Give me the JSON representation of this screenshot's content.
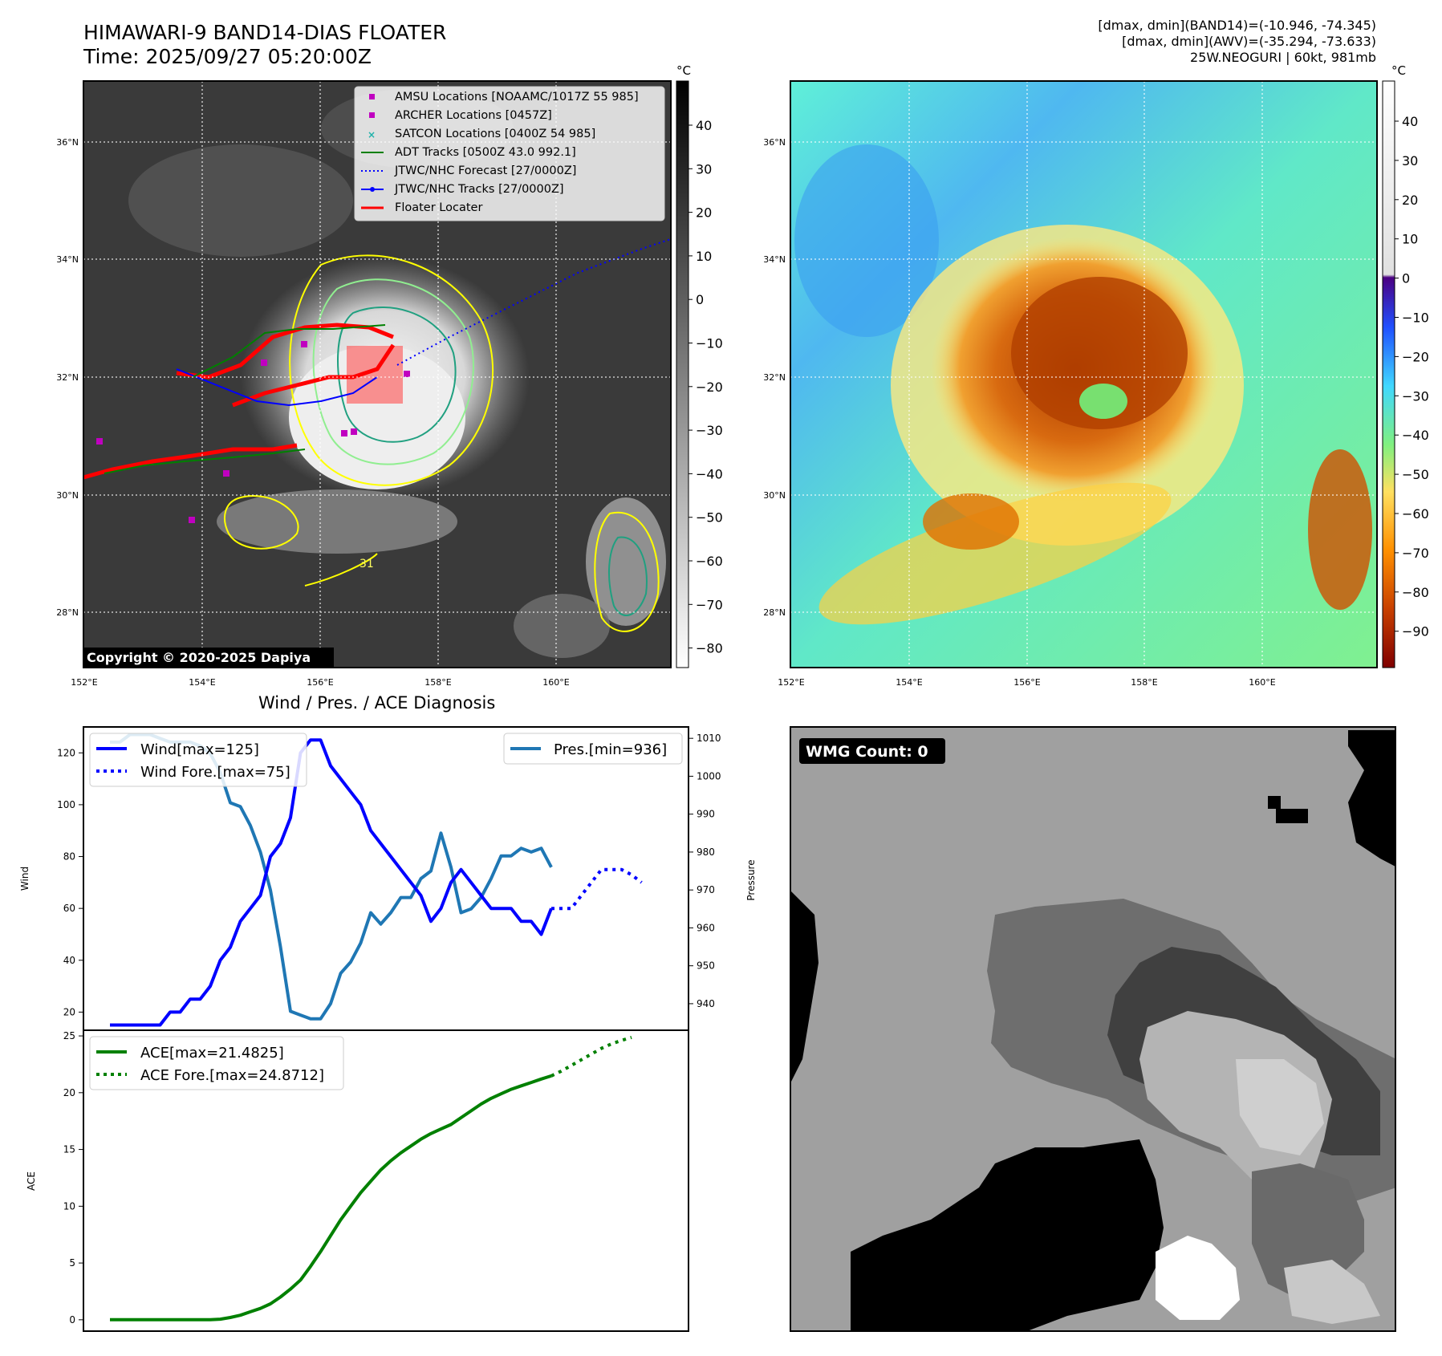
{
  "header": {
    "title_line1": "HIMAWARI-9 BAND14-DIAS FLOATER",
    "title_line2": "Time: 2025/09/27 05:20:00Z",
    "info_line1": "[dmax, dmin](BAND14)=(-10.946, -74.345)",
    "info_line2": "[dmax, dmin](AWV)=(-35.294, -73.633)",
    "info_line3": "25W.NEOGURI | 60kt, 981mb"
  },
  "map_common": {
    "lat_ticks": [
      "36°N",
      "34°N",
      "32°N",
      "30°N",
      "28°N"
    ],
    "lon_ticks": [
      "152°E",
      "154°E",
      "156°E",
      "158°E",
      "160°E"
    ],
    "colorbar_unit": "°C"
  },
  "ir_panel": {
    "colorbar_ticks": [
      "40",
      "30",
      "20",
      "10",
      "0",
      "−10",
      "−20",
      "−30",
      "−40",
      "−50",
      "−60",
      "−70",
      "−80"
    ],
    "copyright": "Copyright © 2020-2025 Dapiya",
    "contour_label": "31",
    "legend": [
      {
        "label": "AMSU Locations [NOAAMC/1017Z 55 985]",
        "color": "#c000c0",
        "marker": "square"
      },
      {
        "label": "ARCHER Locations [0457Z]",
        "color": "#c000c0",
        "marker": "square"
      },
      {
        "label": "SATCON Locations [0400Z 54 985]",
        "color": "#20b2aa",
        "marker": "x"
      },
      {
        "label": "ADT Tracks [0500Z 43.0 992.1]",
        "color": "#008000",
        "marker": "line"
      },
      {
        "label": "JTWC/NHC Forecast [27/0000Z]",
        "color": "#0000ff",
        "marker": "dotted"
      },
      {
        "label": "JTWC/NHC Tracks [27/0000Z]",
        "color": "#0000ff",
        "marker": "line-dot"
      },
      {
        "label": "Floater Locater",
        "color": "#ff0000",
        "marker": "line"
      }
    ]
  },
  "wv_panel": {
    "colorbar_ticks": [
      "40",
      "30",
      "20",
      "10",
      "0",
      "−10",
      "−20",
      "−30",
      "−40",
      "−50",
      "−60",
      "−70",
      "−80",
      "−90"
    ]
  },
  "wmg_panel": {
    "badge": "WMG Count: 0"
  },
  "chart_data": [
    {
      "type": "line",
      "title": "Wind / Pres. / ACE Diagnosis",
      "ylabel": "Wind",
      "ylabel_right": "Pressure",
      "ylim": [
        13,
        130
      ],
      "ylim_right": [
        933,
        1013
      ],
      "yticks": [
        20,
        40,
        60,
        80,
        100,
        120
      ],
      "yticks_right": [
        940,
        950,
        960,
        970,
        980,
        990,
        1000,
        1010
      ],
      "series": [
        {
          "name": "Wind[max=125]",
          "color": "#0000ff",
          "style": "solid",
          "values": [
            15,
            15,
            15,
            15,
            15,
            15,
            20,
            20,
            25,
            25,
            30,
            40,
            45,
            55,
            60,
            65,
            80,
            85,
            95,
            120,
            125,
            125,
            115,
            110,
            105,
            100,
            90,
            85,
            80,
            75,
            70,
            65,
            55,
            60,
            70,
            75,
            70,
            65,
            60,
            60,
            60,
            55,
            55,
            50,
            60
          ]
        },
        {
          "name": "Wind Fore.[max=75]",
          "color": "#0000ff",
          "style": "dotted",
          "x_start": 44,
          "values": [
            60,
            60,
            60,
            65,
            70,
            75,
            75,
            75,
            73,
            70
          ]
        },
        {
          "name": "Pres.[min=936]",
          "color": "#1f77b4",
          "style": "solid",
          "axis": "right",
          "values": [
            1009,
            1009,
            1011,
            1011,
            1011,
            1010,
            1009,
            1009,
            1009,
            1008,
            1006,
            1001,
            993,
            992,
            987,
            980,
            970,
            955,
            938,
            937,
            936,
            936,
            940,
            948,
            951,
            956,
            964,
            961,
            964,
            968,
            968,
            973,
            975,
            985,
            976,
            964,
            965,
            968,
            973,
            979,
            979,
            981,
            980,
            981,
            976
          ]
        }
      ]
    },
    {
      "type": "line",
      "ylabel": "ACE",
      "ylim": [
        -1,
        25.5
      ],
      "yticks": [
        0,
        5,
        10,
        15,
        20,
        25
      ],
      "series": [
        {
          "name": "ACE[max=21.4825]",
          "color": "#008000",
          "style": "solid",
          "values": [
            0,
            0,
            0,
            0,
            0,
            0,
            0,
            0,
            0,
            0,
            0,
            0.05,
            0.2,
            0.4,
            0.7,
            1.0,
            1.4,
            2.0,
            2.7,
            3.5,
            4.7,
            6.0,
            7.4,
            8.8,
            10.0,
            11.2,
            12.2,
            13.2,
            14.0,
            14.7,
            15.3,
            15.9,
            16.4,
            16.8,
            17.2,
            17.8,
            18.4,
            19.0,
            19.5,
            19.9,
            20.3,
            20.6,
            20.9,
            21.2,
            21.48
          ]
        },
        {
          "name": "ACE Fore.[max=24.8712]",
          "color": "#008000",
          "style": "dotted",
          "x_start": 44,
          "values": [
            21.48,
            21.9,
            22.4,
            22.9,
            23.4,
            23.9,
            24.3,
            24.6,
            24.87
          ]
        }
      ]
    }
  ]
}
